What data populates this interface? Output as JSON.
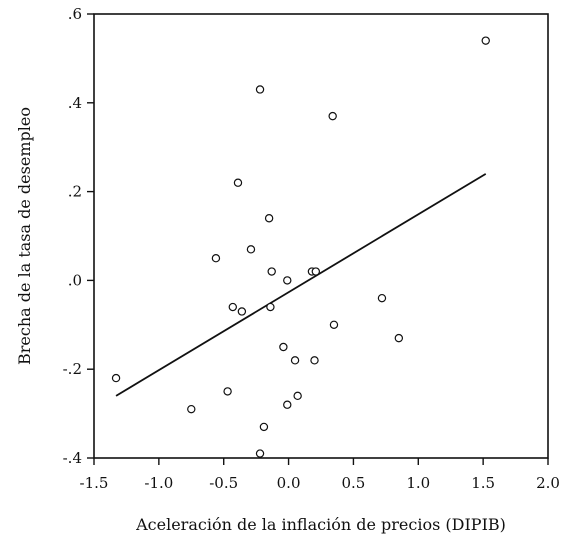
{
  "chart_data": {
    "type": "scatter",
    "title": "",
    "xlabel": "Aceleración de la inflación de precios (DIPIB)",
    "ylabel": "Brecha de la tasa de desempleo",
    "xlim": [
      -1.5,
      2.0
    ],
    "ylim": [
      -0.4,
      0.6
    ],
    "x_ticks": [
      {
        "value": -1.5,
        "label": "-1.5"
      },
      {
        "value": -1.0,
        "label": "-1.0"
      },
      {
        "value": -0.5,
        "label": "-0.5"
      },
      {
        "value": 0.0,
        "label": "0.0"
      },
      {
        "value": 0.5,
        "label": "0.5"
      },
      {
        "value": 1.0,
        "label": "1.0"
      },
      {
        "value": 1.5,
        "label": "1.5"
      },
      {
        "value": 2.0,
        "label": "2.0"
      }
    ],
    "y_ticks": [
      {
        "value": -0.4,
        "label": "-.4"
      },
      {
        "value": -0.2,
        "label": "-.2"
      },
      {
        "value": 0.0,
        "label": ".0"
      },
      {
        "value": 0.2,
        "label": ".2"
      },
      {
        "value": 0.4,
        "label": ".4"
      },
      {
        "value": 0.6,
        "label": ".6"
      }
    ],
    "grid": false,
    "series": [
      {
        "type": "scatter",
        "marker": "open-circle",
        "points": [
          {
            "x": -1.33,
            "y": -0.22
          },
          {
            "x": -0.75,
            "y": -0.29
          },
          {
            "x": -0.56,
            "y": 0.05
          },
          {
            "x": -0.47,
            "y": -0.25
          },
          {
            "x": -0.43,
            "y": -0.06
          },
          {
            "x": -0.39,
            "y": 0.22
          },
          {
            "x": -0.36,
            "y": -0.07
          },
          {
            "x": -0.29,
            "y": 0.07
          },
          {
            "x": -0.22,
            "y": 0.43
          },
          {
            "x": -0.22,
            "y": -0.39
          },
          {
            "x": -0.19,
            "y": -0.33
          },
          {
            "x": -0.15,
            "y": 0.14
          },
          {
            "x": -0.14,
            "y": -0.06
          },
          {
            "x": -0.13,
            "y": 0.02
          },
          {
            "x": -0.04,
            "y": -0.15
          },
          {
            "x": -0.01,
            "y": 0.0
          },
          {
            "x": -0.01,
            "y": -0.28
          },
          {
            "x": 0.05,
            "y": -0.18
          },
          {
            "x": 0.07,
            "y": -0.26
          },
          {
            "x": 0.18,
            "y": 0.02
          },
          {
            "x": 0.2,
            "y": -0.18
          },
          {
            "x": 0.21,
            "y": 0.02
          },
          {
            "x": 0.34,
            "y": 0.37
          },
          {
            "x": 0.35,
            "y": -0.1
          },
          {
            "x": 0.72,
            "y": -0.04
          },
          {
            "x": 0.85,
            "y": -0.13
          },
          {
            "x": 1.52,
            "y": 0.54
          }
        ]
      },
      {
        "type": "line",
        "style": "fit-line",
        "points": [
          {
            "x": -1.33,
            "y": -0.26
          },
          {
            "x": 1.52,
            "y": 0.24
          }
        ]
      }
    ]
  }
}
